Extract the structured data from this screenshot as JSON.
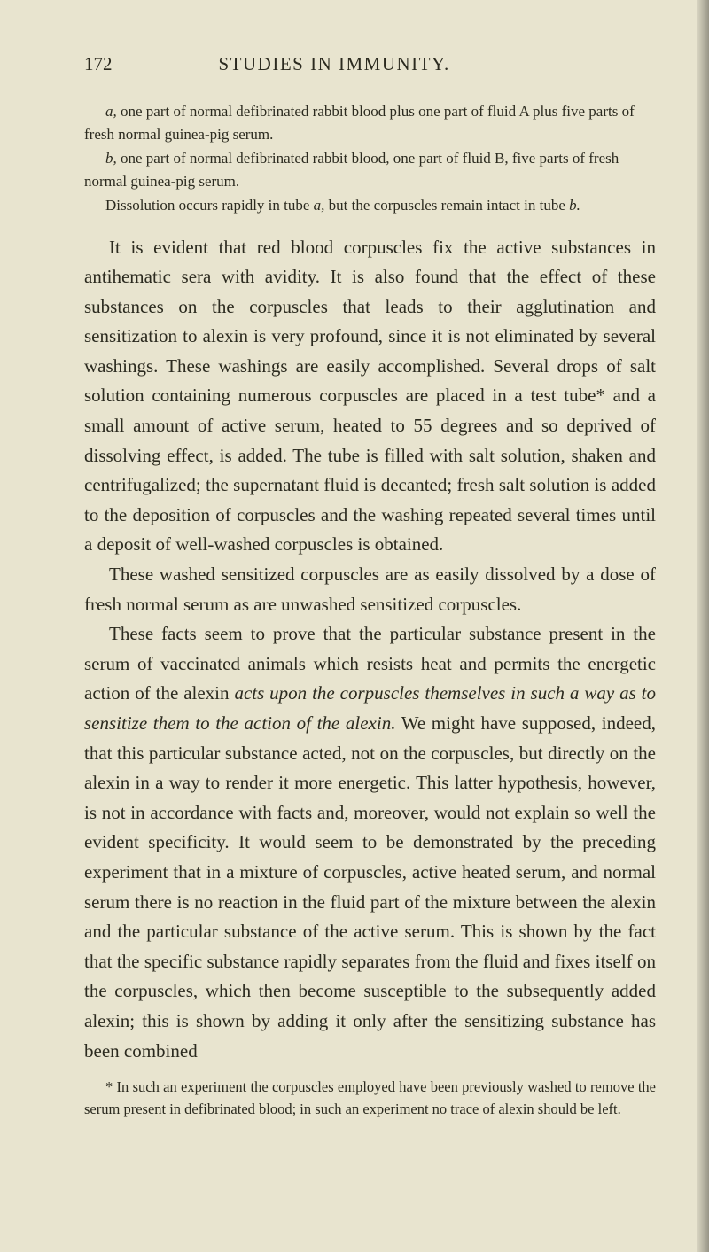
{
  "page": {
    "number": "172",
    "title": "STUDIES IN IMMUNITY."
  },
  "notes": {
    "a_prefix": "a,",
    "a_text": " one part of normal defibrinated rabbit blood plus one part of fluid A plus five parts of fresh normal guinea-pig serum.",
    "b_prefix": "b,",
    "b_text": " one part of normal defibrinated rabbit blood, one part of fluid B, five parts of fresh normal guinea-pig serum.",
    "dissolution_pre": "Dissolution occurs rapidly in tube ",
    "dissolution_a": "a,",
    "dissolution_mid": " but the corpuscles remain intact in tube ",
    "dissolution_b": "b."
  },
  "body": {
    "p1": "It is evident that red blood corpuscles fix the active substances in antihematic sera with avidity. It is also found that the effect of these substances on the corpuscles that leads to their agglutination and sensitization to alexin is very profound, since it is not eliminated by several washings. These washings are easily accomplished. Several drops of salt solution containing numerous corpuscles are placed in a test tube* and a small amount of active serum, heated to 55 degrees and so deprived of dissolving effect, is added. The tube is filled with salt solution, shaken and centrifugalized; the supernatant fluid is decanted; fresh salt solution is added to the deposition of corpuscles and the washing repeated several times until a deposit of well-washed corpuscles is obtained.",
    "p2": "These washed sensitized corpuscles are as easily dissolved by a dose of fresh normal serum as are unwashed sensitized corpuscles.",
    "p3_pre": "These facts seem to prove that the particular substance present in the serum of vaccinated animals which resists heat and permits the energetic action of the alexin ",
    "p3_italic": "acts upon the corpuscles themselves in such a way as to sensitize them to the action of the alexin.",
    "p3_post": " We might have supposed, indeed, that this particular substance acted, not on the corpuscles, but directly on the alexin in a way to render it more energetic. This latter hypothesis, however, is not in accordance with facts and, moreover, would not explain so well the evident specificity. It would seem to be demonstrated by the preceding experiment that in a mixture of corpuscles, active heated serum, and normal serum there is no reaction in the fluid part of the mixture between the alexin and the particular substance of the active serum. This is shown by the fact that the specific substance rapidly separates from the fluid and fixes itself on the corpuscles, which then become susceptible to the subsequently added alexin; this is shown by adding it only after the sensitizing substance has been combined"
  },
  "footnote": {
    "text": "* In such an experiment the corpuscles employed have been previously washed to remove the serum present in defibrinated blood; in such an experiment no trace of alexin should be left."
  },
  "colors": {
    "background": "#e8e4cf",
    "text": "#2b2a1f"
  }
}
